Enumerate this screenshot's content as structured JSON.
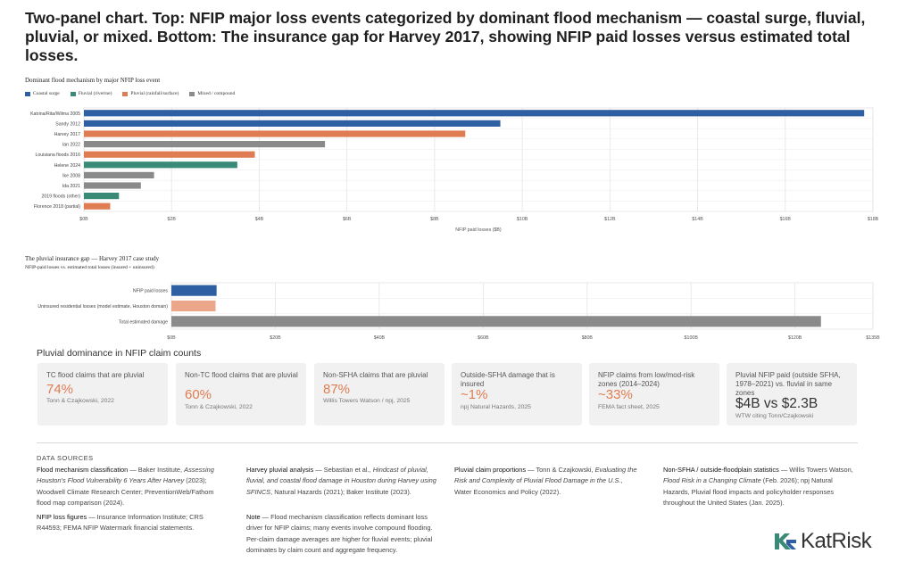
{
  "title": "Two-panel chart. Top: NFIP major loss events categorized by dominant flood mechanism — coastal surge, fluvial, pluvial, or mixed. Bottom: The insurance gap for Harvey 2017, showing NFIP paid losses versus estimated total losses.",
  "chart_data": [
    {
      "type": "bar",
      "orientation": "horizontal",
      "title": "Dominant flood mechanism by major NFIP loss event",
      "xlabel": "NFIP paid losses ($B)",
      "xlim": [
        0,
        18
      ],
      "xticks": [
        "$0B",
        "$2B",
        "$4B",
        "$6B",
        "$8B",
        "$10B",
        "$12B",
        "$14B",
        "$16B",
        "$18B"
      ],
      "legend": [
        {
          "name": "Coastal surge",
          "color": "#2f5fa3"
        },
        {
          "name": "Fluvial (riverine)",
          "color": "#3a8a78"
        },
        {
          "name": "Pluvial (rainfall/surface)",
          "color": "#e07c52"
        },
        {
          "name": "Mixed / compound",
          "color": "#8a8a8a"
        }
      ],
      "legend_position": "top-left",
      "grid": true,
      "categories": [
        "Katrina/Rita/Wilma 2005",
        "Sandy 2012",
        "Harvey 2017",
        "Ian 2022",
        "Louisiana floods 2016",
        "Helene 2024",
        "Ike 2008",
        "Ida 2021",
        "2019 floods (other)",
        "Florence 2018 (partial)"
      ],
      "values": [
        17.8,
        9.5,
        8.7,
        5.5,
        3.9,
        3.5,
        1.6,
        1.3,
        0.8,
        0.6
      ],
      "mechanism": [
        "Coastal surge",
        "Coastal surge",
        "Pluvial (rainfall/surface)",
        "Mixed / compound",
        "Pluvial (rainfall/surface)",
        "Fluvial (riverine)",
        "Mixed / compound",
        "Mixed / compound",
        "Fluvial (riverine)",
        "Pluvial (rainfall/surface)"
      ]
    },
    {
      "type": "bar",
      "orientation": "horizontal",
      "title": "The pluvial insurance gap — Harvey 2017 case study",
      "subtitle": "NFIP-paid losses vs. estimated total losses (insured + uninsured)",
      "xlim": [
        0,
        135
      ],
      "xticks": [
        "$0B",
        "$20B",
        "$40B",
        "$60B",
        "$80B",
        "$100B",
        "$120B",
        "$135B"
      ],
      "grid": true,
      "categories": [
        "NFIP paid losses",
        "Uninsured residential losses (model estimate, Houston domain)",
        "Total estimated damage"
      ],
      "values": [
        8.7,
        8.5,
        125
      ],
      "colors": [
        "#2f5fa3",
        "#eca68a",
        "#8a8a8a"
      ]
    }
  ],
  "stats": {
    "heading": "Pluvial dominance in NFIP claim counts",
    "cards": [
      {
        "label": "TC flood claims that are pluvial",
        "value": "74%",
        "source": "Tonn & Czajkowski, 2022"
      },
      {
        "label": "Non-TC flood claims that are pluvial",
        "value": "60%",
        "source": "Tonn & Czajkowski, 2022"
      },
      {
        "label": "Non-SFHA claims that are pluvial",
        "value": "87%",
        "source": "Willis Towers Watson / npj, 2025"
      },
      {
        "label": "Outside-SFHA damage that is insured",
        "value": "~1%",
        "source": "npj Natural Hazards, 2025"
      },
      {
        "label": "NFIP claims from low/mod-risk zones (2014–2024)",
        "value": "~33%",
        "source": "FEMA fact sheet, 2025"
      },
      {
        "label": "Pluvial NFIP paid (outside SFHA, 1978–2021) vs. fluvial in same zones",
        "value": "$4B vs $2.3B",
        "source": "WTW citing Tonn/Czajkowski"
      }
    ]
  },
  "sources": {
    "heading": "DATA SOURCES",
    "items": [
      {
        "title": "Flood mechanism classification",
        "text": " — Baker Institute, ",
        "italic": "Assessing Houston's Flood Vulnerability 6 Years After Harvey",
        "rest": " (2023); Woodwell Climate Research Center; PreventionWeb/Fathom flood map comparison (2024)."
      },
      {
        "title": "NFIP loss figures",
        "text": " — Insurance Information Institute; CRS R44593; FEMA NFIP Watermark financial statements.",
        "italic": "",
        "rest": ""
      },
      {
        "title": "Harvey pluvial analysis",
        "text": " — Sebastian et al., ",
        "italic": "Hindcast of pluvial, fluvial, and coastal flood damage in Houston during Harvey using SFINCS",
        "rest": ", Natural Hazards (2021); Baker Institute (2023)."
      },
      {
        "title": "Note",
        "text": " — Flood mechanism classification reflects dominant loss driver for NFIP claims; many events involve compound flooding. Per-claim damage averages are higher for fluvial events; pluvial dominates by claim count and aggregate frequency.",
        "italic": "",
        "rest": ""
      },
      {
        "title": "Pluvial claim proportions",
        "text": " — Tonn & Czajkowski, ",
        "italic": "Evaluating the Risk and Complexity of Pluvial Flood Damage in the U.S.",
        "rest": ", Water Economics and Policy (2022)."
      },
      {
        "title": "Non-SFHA / outside-floodplain statistics",
        "text": " — Willis Towers Watson, ",
        "italic": "Flood Risk in a Changing Climate",
        "rest": " (Feb. 2026); npj Natural Hazards, Pluvial flood impacts and policyholder responses throughout the United States (Jan. 2025)."
      }
    ]
  },
  "logo": {
    "text": "KatRisk",
    "mark": "KR"
  }
}
